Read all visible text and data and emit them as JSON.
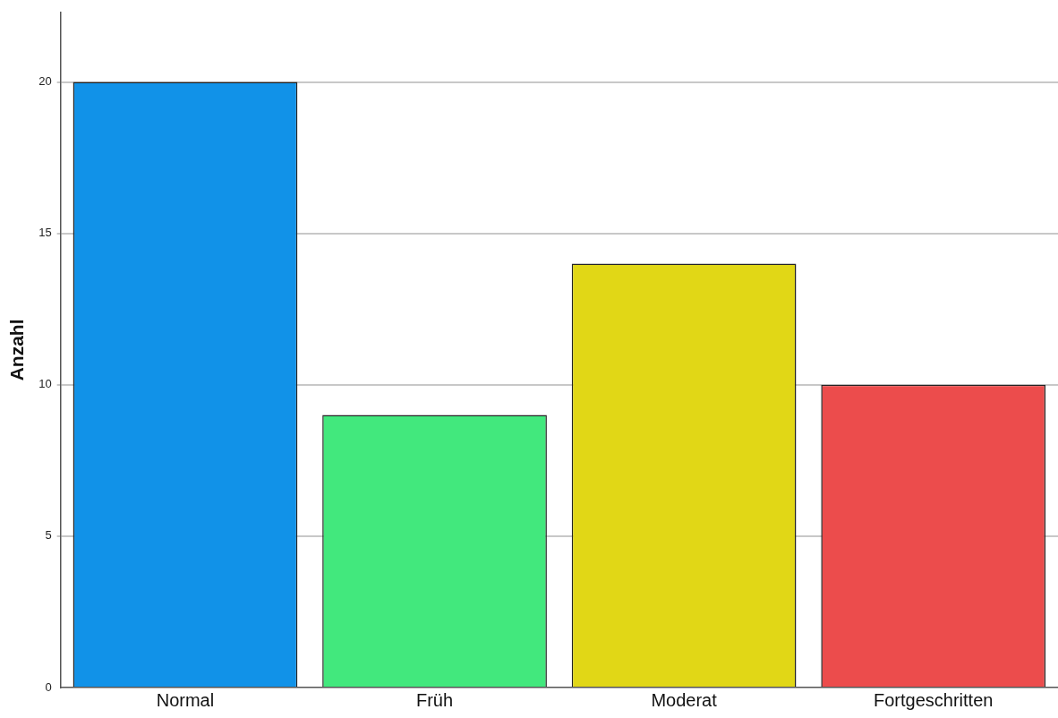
{
  "chart_data": {
    "type": "bar",
    "ylabel": "Anzahl",
    "categories": [
      "Normal",
      "Früh",
      "Moderat",
      "Fortgeschritten"
    ],
    "values": [
      20,
      9,
      14,
      10
    ],
    "colors": [
      "#1192e8",
      "#42e87d",
      "#e1d716",
      "#ec4c4c"
    ],
    "ylim": [
      0,
      22.3
    ],
    "yticks": [
      0,
      5,
      10,
      15,
      20
    ],
    "grid": "y",
    "legend": false
  }
}
